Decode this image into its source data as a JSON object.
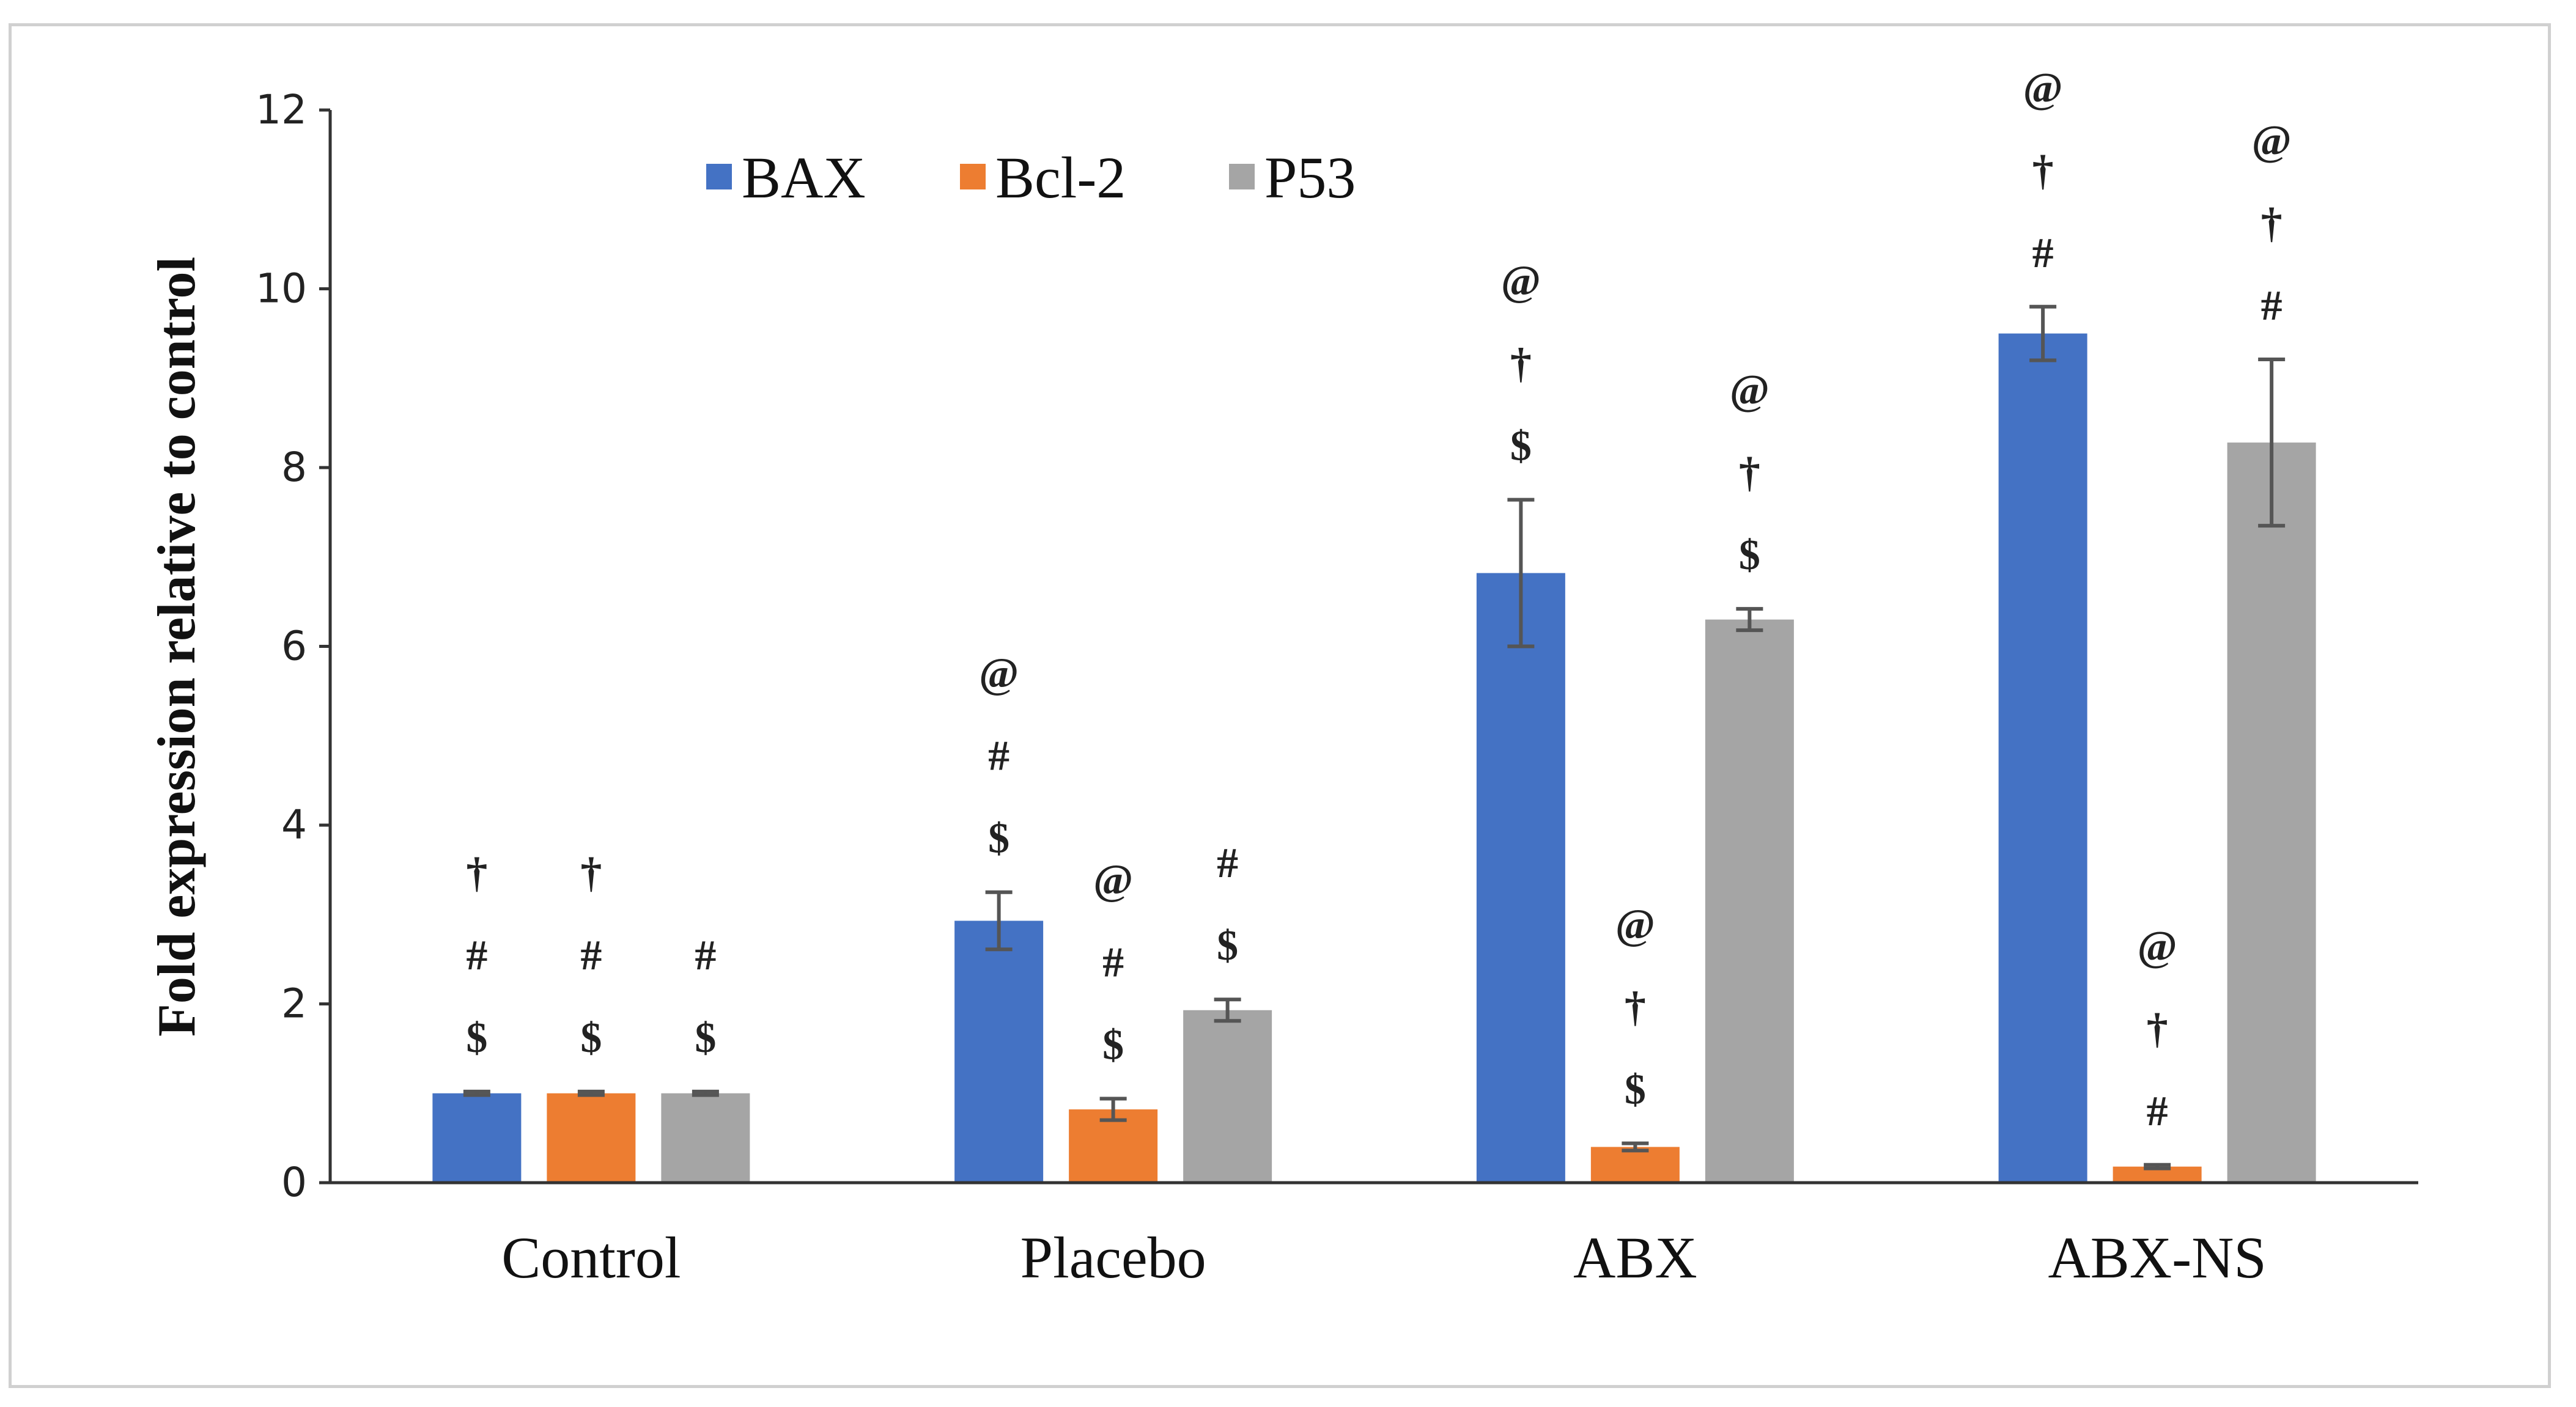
{
  "chart_data": {
    "type": "bar",
    "categories": [
      "Control",
      "Placebo",
      "ABX",
      "ABX-NS"
    ],
    "series": [
      {
        "name": "BAX",
        "color": "#4472C4",
        "values": [
          1.0,
          2.93,
          6.82,
          9.5
        ],
        "errors": [
          0.02,
          0.32,
          0.82,
          0.3
        ],
        "annotations": [
          [
            "$",
            "#",
            "†"
          ],
          [
            "$",
            "#",
            "@"
          ],
          [
            "$",
            "†",
            "@"
          ],
          [
            "#",
            "†",
            "@"
          ]
        ]
      },
      {
        "name": "Bcl-2",
        "color": "#ED7D31",
        "values": [
          1.0,
          0.82,
          0.4,
          0.18
        ],
        "errors": [
          0.02,
          0.12,
          0.04,
          0.02
        ],
        "annotations": [
          [
            "$",
            "#",
            "†"
          ],
          [
            "$",
            "#",
            "@"
          ],
          [
            "$",
            "†",
            "@"
          ],
          [
            "#",
            "†",
            "@"
          ]
        ]
      },
      {
        "name": "P53",
        "color": "#A5A5A5",
        "values": [
          1.0,
          1.93,
          6.3,
          8.28
        ],
        "errors": [
          0.02,
          0.12,
          0.12,
          0.93
        ],
        "annotations": [
          [
            "$",
            "#"
          ],
          [
            "$",
            "#"
          ],
          [
            "$",
            "†",
            "@"
          ],
          [
            "#",
            "†",
            "@"
          ]
        ]
      }
    ],
    "title": "",
    "xlabel": "",
    "ylabel": "Fold expression relative to control",
    "ylim": [
      0,
      12
    ],
    "yticks": [
      "0",
      "2",
      "4",
      "6",
      "8",
      "10",
      "12"
    ],
    "grid": false,
    "legend_position": "top-left"
  }
}
